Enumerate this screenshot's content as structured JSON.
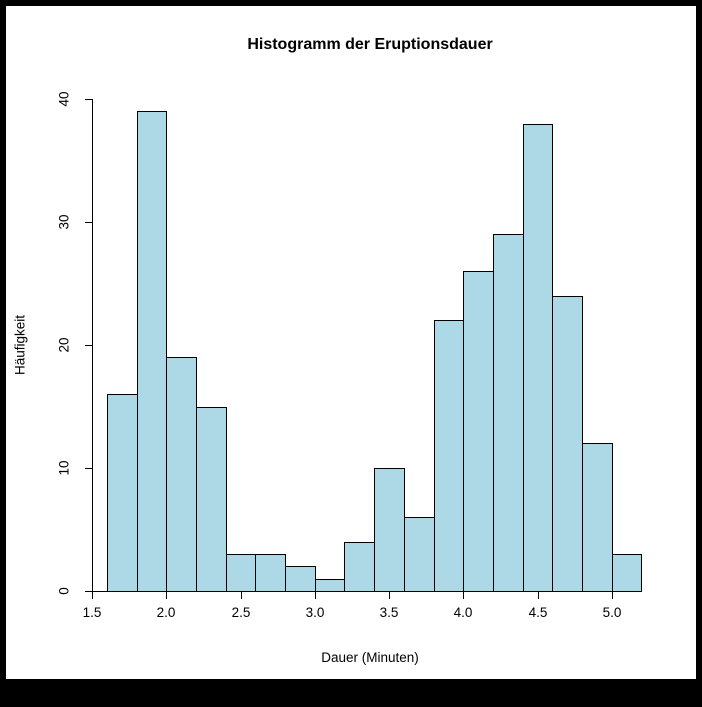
{
  "window": {
    "frame_color": "#000000",
    "canvas_color": "#FFFFFF"
  },
  "chart_data": {
    "type": "bar",
    "subtype": "histogram",
    "title": "Histogramm der Eruptionsdauer",
    "xlabel": "Dauer (Minuten)",
    "ylabel": "Häufigkeit",
    "bin_start": 1.6,
    "bin_width": 0.2,
    "categories": [
      "1.6-1.8",
      "1.8-2.0",
      "2.0-2.2",
      "2.2-2.4",
      "2.4-2.6",
      "2.6-2.8",
      "2.8-3.0",
      "3.0-3.2",
      "3.2-3.4",
      "3.4-3.6",
      "3.6-3.8",
      "3.8-4.0",
      "4.0-4.2",
      "4.2-4.4",
      "4.4-4.6",
      "4.6-4.8",
      "4.8-5.0",
      "5.0-5.2"
    ],
    "values": [
      16,
      39,
      19,
      15,
      3,
      3,
      2,
      1,
      4,
      10,
      6,
      22,
      26,
      29,
      38,
      24,
      12,
      3
    ],
    "x_ticks": [
      1.5,
      2.0,
      2.5,
      3.0,
      3.5,
      4.0,
      4.5,
      5.0
    ],
    "x_tick_labels": [
      "1.5",
      "2.0",
      "2.5",
      "3.0",
      "3.5",
      "4.0",
      "4.5",
      "5.0"
    ],
    "y_ticks": [
      0,
      10,
      20,
      30,
      40
    ],
    "y_tick_labels": [
      "0",
      "10",
      "20",
      "30",
      "40"
    ],
    "xlim": [
      1.5,
      5.2
    ],
    "ylim": [
      0,
      40
    ],
    "bar_fill": "#ADD8E6",
    "bar_stroke": "#000000",
    "grid": false,
    "legend": null
  }
}
